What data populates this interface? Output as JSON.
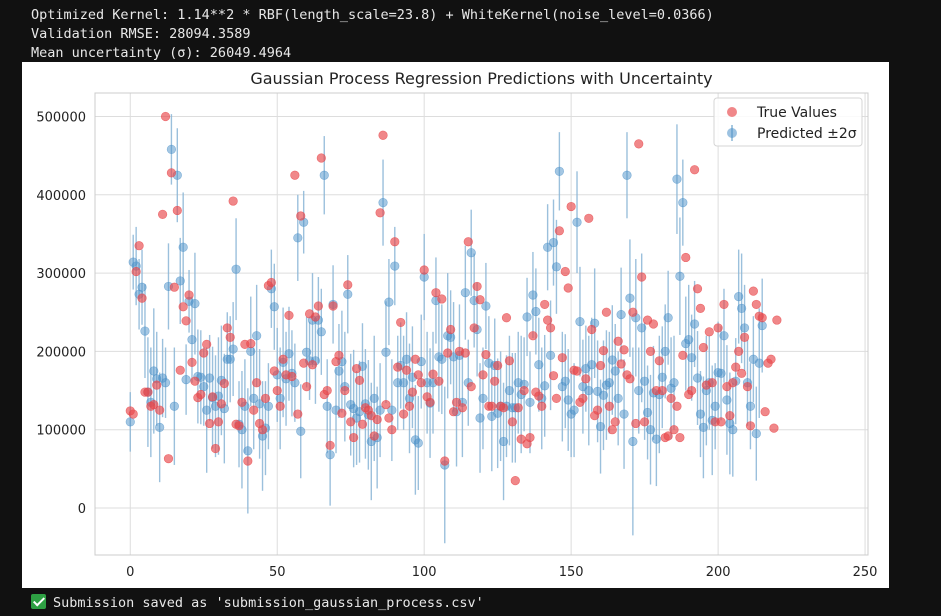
{
  "output": {
    "lines": [
      "Optimized Kernel: 1.14**2 * RBF(length_scale=23.8) + WhiteKernel(noise_level=0.0366)",
      "Validation RMSE: 28094.3589",
      "Mean uncertainty (σ): 26049.4964"
    ],
    "footer": "Submission saved as 'submission_gaussian_process.csv'",
    "footer_icon": "check-mark-icon"
  },
  "chart_data": {
    "type": "scatter",
    "title": "Gaussian Process Regression Predictions with Uncertainty",
    "xlabel": "",
    "ylabel": "",
    "xlim": [
      -12,
      251
    ],
    "ylim": [
      -60000,
      530000
    ],
    "xticks": [
      0,
      50,
      100,
      150,
      200,
      250
    ],
    "yticks": [
      0,
      100000,
      200000,
      300000,
      400000,
      500000
    ],
    "grid": true,
    "legend_position": "top-right",
    "legend": [
      "True Values",
      "Predicted ±2σ"
    ],
    "colors": {
      "true": "#e8464a",
      "pred": "#4a90c8",
      "err": "#89b5d6"
    },
    "true_values": [
      124000,
      120000,
      302000,
      335000,
      268000,
      148000,
      148000,
      130000,
      132000,
      157000,
      125000,
      375000,
      500000,
      63000,
      428000,
      282000,
      380000,
      176000,
      257000,
      239000,
      272000,
      186000,
      162000,
      141000,
      145000,
      198000,
      209000,
      108000,
      142000,
      76000,
      110000,
      133000,
      159000,
      230000,
      218000,
      392000,
      107000,
      105000,
      135000,
      209000,
      60000,
      210000,
      125000,
      160000,
      108000,
      100000,
      140000,
      284000,
      288000,
      175000,
      150000,
      130000,
      190000,
      170000,
      246000,
      168000,
      425000,
      120000,
      373000,
      185000,
      155000,
      248000,
      183000,
      244000,
      258000,
      447000,
      145000,
      150000,
      80000,
      258000,
      187000,
      195000,
      121000,
      150000,
      285000,
      110000,
      90000,
      178000,
      163000,
      107000,
      128000,
      125000,
      118000,
      92000,
      113000,
      377000,
      476000,
      132000,
      115000,
      100000,
      340000,
      180000,
      237000,
      120000,
      176000,
      130000,
      148000,
      190000,
      170000,
      160000,
      304000,
      142000,
      135000,
      171000,
      275000,
      162000,
      267000,
      60000,
      198000,
      228000,
      123000,
      135000,
      200000,
      128000,
      198000,
      340000,
      155000,
      230000,
      283000,
      266000,
      170000,
      196000,
      130000,
      130000,
      162000,
      182000,
      130000,
      128000,
      243000,
      188000,
      110000,
      35000,
      128000,
      88000,
      150000,
      82000,
      90000,
      220000,
      148000,
      143000,
      130000,
      260000,
      240000,
      230000,
      169000,
      140000,
      354000,
      192000,
      302000,
      281000,
      385000,
      176000,
      175000,
      135000,
      140000,
      165000,
      370000,
      228000,
      118000,
      125000,
      182000,
      201000,
      250000,
      130000,
      100000,
      110000,
      213000,
      184000,
      202000,
      170000,
      165000,
      250000,
      108000,
      465000,
      295000,
      110000,
      240000,
      200000,
      235000,
      150000,
      188000,
      150000,
      90000,
      92000,
      140000,
      100000,
      130000,
      90000,
      195000,
      320000,
      145000,
      150000,
      432000,
      280000,
      255000,
      205000,
      157000,
      225000,
      160000,
      110000,
      230000,
      110000,
      260000,
      155000,
      118000,
      160000,
      180000,
      200000,
      172000,
      218000,
      155000,
      105000,
      277000,
      260000,
      245000,
      243000,
      123000,
      185000,
      190000,
      102000,
      240000
    ],
    "predicted": [
      110000,
      314000,
      309000,
      273000,
      282000,
      226000,
      148000,
      135000,
      175000,
      165000,
      103000,
      166000,
      160000,
      283000,
      458000,
      130000,
      425000,
      290000,
      333000,
      164000,
      264000,
      215000,
      261000,
      168000,
      167000,
      155000,
      125000,
      166000,
      141000,
      130000,
      143000,
      163000,
      127000,
      190000,
      190000,
      203000,
      305000,
      107000,
      100000,
      130000,
      73000,
      200000,
      140000,
      220000,
      133000,
      92000,
      102000,
      130000,
      280000,
      257000,
      170000,
      140000,
      186000,
      165000,
      197000,
      172000,
      160000,
      345000,
      98000,
      365000,
      199000,
      188000,
      240000,
      188000,
      240000,
      225000,
      425000,
      130000,
      68000,
      260000,
      125000,
      175000,
      187000,
      155000,
      273000,
      132000,
      127000,
      115000,
      123000,
      181000,
      133000,
      119000,
      85000,
      140000,
      90000,
      125000,
      390000,
      199000,
      263000,
      125000,
      309000,
      160000,
      182000,
      160000,
      190000,
      140000,
      167000,
      87000,
      83000,
      187000,
      295000,
      160000,
      134000,
      160000,
      265000,
      193000,
      190000,
      55000,
      220000,
      218000,
      193000,
      123000,
      195000,
      135000,
      275000,
      160000,
      326000,
      265000,
      228000,
      115000,
      140000,
      258000,
      185000,
      117000,
      182000,
      121000,
      130000,
      85000,
      130000,
      150000,
      128000,
      128000,
      160000,
      145000,
      158000,
      244000,
      135000,
      272000,
      251000,
      183000,
      140000,
      156000,
      333000,
      195000,
      339000,
      308000,
      430000,
      155000,
      162000,
      138000,
      120000,
      125000,
      365000,
      238000,
      155000,
      178000,
      150000,
      183000,
      236000,
      149000,
      104000,
      144000,
      157000,
      160000,
      189000,
      175000,
      140000,
      247000,
      120000,
      425000,
      268000,
      85000,
      243000,
      150000,
      230000,
      162000,
      122000,
      100000,
      147000,
      88000,
      145000,
      167000,
      200000,
      243000,
      153000,
      160000,
      420000,
      296000,
      390000,
      210000,
      215000,
      192000,
      235000,
      166000,
      120000,
      103000,
      150000,
      160000,
      112000,
      130000,
      173000,
      172000,
      220000,
      138000,
      108000,
      100000,
      162000,
      270000,
      255000,
      230000,
      160000,
      130000,
      190000,
      95000,
      185000,
      233000
    ],
    "sigma2": [
      38000,
      35000,
      50000,
      45000,
      48000,
      60000,
      70000,
      70000,
      80000,
      60000,
      70000,
      50000,
      45000,
      55000,
      45000,
      75000,
      60000,
      55000,
      70000,
      45000,
      40000,
      55000,
      65000,
      60000,
      60000,
      50000,
      80000,
      55000,
      65000,
      65000,
      75000,
      70000,
      70000,
      60000,
      55000,
      60000,
      65000,
      55000,
      75000,
      60000,
      80000,
      70000,
      65000,
      65000,
      70000,
      70000,
      60000,
      55000,
      50000,
      55000,
      60000,
      65000,
      70000,
      60000,
      60000,
      55000,
      50000,
      55000,
      60000,
      40000,
      45000,
      50000,
      60000,
      55000,
      55000,
      55000,
      50000,
      60000,
      65000,
      50000,
      55000,
      60000,
      65000,
      70000,
      50000,
      65000,
      75000,
      60000,
      65000,
      55000,
      70000,
      70000,
      75000,
      80000,
      65000,
      60000,
      55000,
      65000,
      55000,
      65000,
      50000,
      60000,
      55000,
      60000,
      60000,
      70000,
      65000,
      70000,
      60000,
      60000,
      55000,
      65000,
      70000,
      65000,
      55000,
      70000,
      70000,
      100000,
      80000,
      60000,
      70000,
      70000,
      65000,
      70000,
      60000,
      55000,
      55000,
      60000,
      60000,
      70000,
      65000,
      55000,
      60000,
      70000,
      60000,
      70000,
      70000,
      75000,
      65000,
      70000,
      70000,
      70000,
      65000,
      75000,
      60000,
      50000,
      65000,
      55000,
      55000,
      60000,
      65000,
      65000,
      55000,
      70000,
      55000,
      60000,
      50000,
      70000,
      60000,
      65000,
      55000,
      60000,
      65000,
      70000,
      60000,
      55000,
      70000,
      60000,
      70000,
      65000,
      60000,
      70000,
      70000,
      65000,
      70000,
      60000,
      60000,
      60000,
      70000,
      55000,
      75000,
      120000,
      75000,
      55000,
      95000,
      75000,
      60000,
      70000,
      60000,
      60000,
      75000,
      65000,
      60000,
      60000,
      65000,
      60000,
      70000,
      75000,
      55000,
      60000,
      70000,
      55000,
      55000,
      60000,
      55000,
      65000,
      70000,
      60000,
      70000,
      55000,
      65000,
      60000,
      60000,
      70000,
      65000,
      60000,
      55000,
      60000,
      70000,
      55000,
      55000,
      55000,
      55000,
      60000,
      70000,
      60000,
      60000,
      60000,
      50000,
      55000,
      60000,
      55000,
      60000,
      50000,
      55000,
      60000,
      55000,
      55000
    ]
  }
}
